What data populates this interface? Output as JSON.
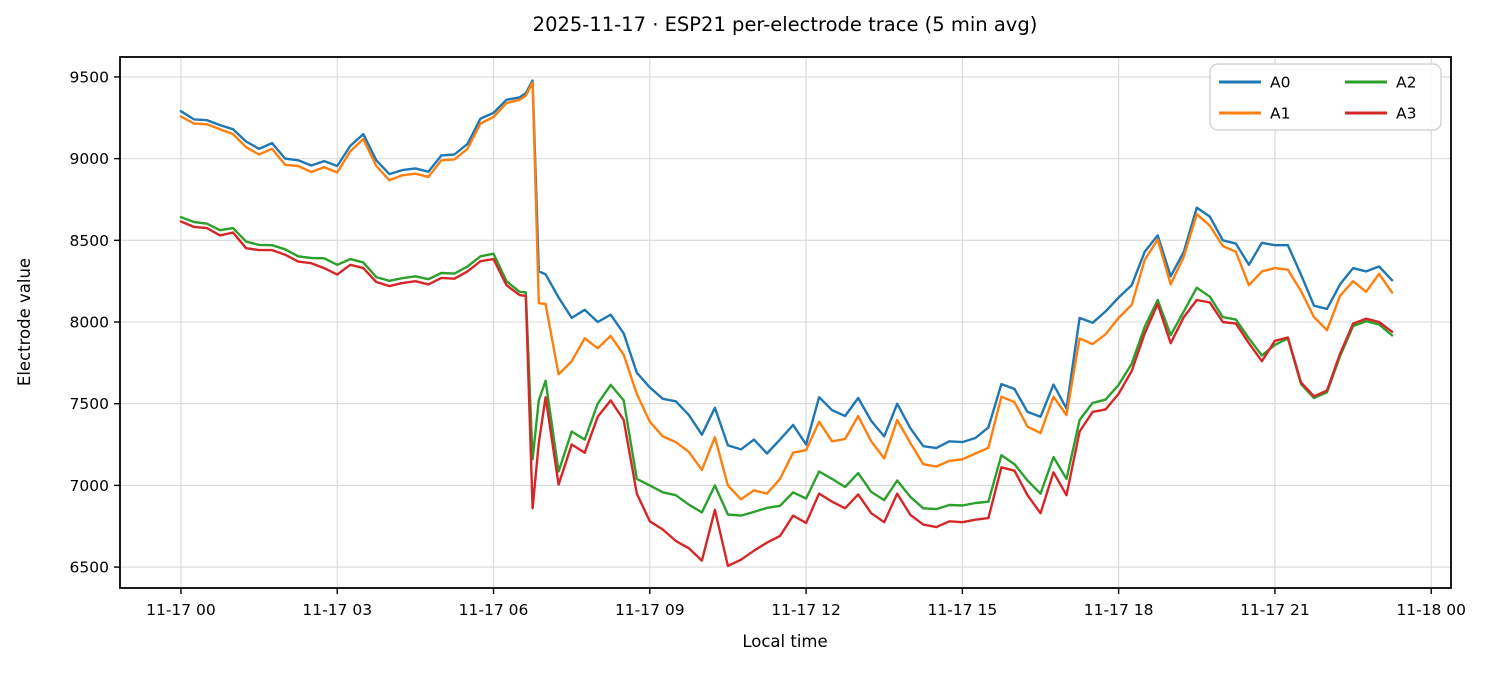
{
  "figure": {
    "title": "2025-11-17 · ESP21 per-electrode trace (5 min avg)",
    "xlabel": "Local time",
    "ylabel": "Electrode value"
  },
  "chart_data": {
    "type": "line",
    "title": "2025-11-17 · ESP21 per-electrode trace (5 min avg)",
    "xlabel": "Local time",
    "ylabel": "Electrode value",
    "x_unit": "hours after 2025-11-17 00:00 local",
    "grid": true,
    "xlim_hours": [
      -1.17,
      24.38
    ],
    "ylim": [
      6372,
      9622
    ],
    "x_tick_hours": [
      0,
      3,
      6,
      9,
      12,
      15,
      18,
      21,
      24
    ],
    "x_tick_labels": [
      "11-17 00",
      "11-17 03",
      "11-17 06",
      "11-17 09",
      "11-17 12",
      "11-17 15",
      "11-17 18",
      "11-17 21",
      "11-18 00"
    ],
    "y_ticks": [
      6500,
      7000,
      7500,
      8000,
      8500,
      9000,
      9500
    ],
    "legend": {
      "position": "upper right",
      "columns": 2,
      "entries": [
        "A0",
        "A1",
        "A2",
        "A3"
      ]
    },
    "x_hours": [
      0,
      0.25,
      0.5,
      0.75,
      1,
      1.25,
      1.5,
      1.75,
      2,
      2.25,
      2.5,
      2.75,
      3,
      3.25,
      3.5,
      3.75,
      4,
      4.25,
      4.5,
      4.75,
      5,
      5.25,
      5.5,
      5.75,
      6,
      6.25,
      6.5,
      6.62,
      6.75,
      6.87,
      7,
      7.25,
      7.5,
      7.75,
      8,
      8.25,
      8.5,
      8.75,
      9,
      9.25,
      9.5,
      9.75,
      10,
      10.25,
      10.5,
      10.75,
      11,
      11.25,
      11.5,
      11.75,
      12,
      12.25,
      12.5,
      12.75,
      13,
      13.25,
      13.5,
      13.75,
      14,
      14.25,
      14.5,
      14.75,
      15,
      15.25,
      15.5,
      15.75,
      16,
      16.25,
      16.5,
      16.75,
      17,
      17.25,
      17.5,
      17.75,
      18,
      18.25,
      18.5,
      18.75,
      19,
      19.25,
      19.5,
      19.75,
      20,
      20.25,
      20.5,
      20.75,
      21,
      21.25,
      21.5,
      21.75,
      22,
      22.25,
      22.5,
      22.75,
      23,
      23.25
    ],
    "series": [
      {
        "name": "A0",
        "color": "#1f77b4",
        "values": [
          9290,
          9240,
          9235,
          9205,
          9180,
          9105,
          9060,
          9095,
          9000,
          8990,
          8958,
          8985,
          8955,
          9078,
          9150,
          8990,
          8905,
          8930,
          8940,
          8920,
          9020,
          9025,
          9090,
          9245,
          9280,
          9360,
          9375,
          9400,
          9478,
          8310,
          8292,
          8150,
          8025,
          8075,
          8000,
          8045,
          7930,
          7690,
          7600,
          7530,
          7515,
          7430,
          7310,
          7475,
          7245,
          7220,
          7280,
          7195,
          7280,
          7370,
          7250,
          7540,
          7460,
          7425,
          7535,
          7395,
          7300,
          7500,
          7350,
          7240,
          7228,
          7270,
          7265,
          7290,
          7355,
          7620,
          7590,
          7450,
          7420,
          7617,
          7470,
          8025,
          7995,
          8065,
          8150,
          8225,
          8430,
          8530,
          8280,
          8430,
          8700,
          8645,
          8500,
          8480,
          8350,
          8485,
          8470,
          8470,
          8290,
          8100,
          8080,
          8230,
          8330,
          8310,
          8340,
          8255
        ]
      },
      {
        "name": "A1",
        "color": "#ff7f0e",
        "values": [
          9258,
          9215,
          9210,
          9180,
          9150,
          9070,
          9025,
          9060,
          8962,
          8955,
          8918,
          8948,
          8915,
          9045,
          9120,
          8955,
          8868,
          8898,
          8908,
          8888,
          8990,
          8995,
          9060,
          9215,
          9255,
          9340,
          9360,
          9385,
          9465,
          8115,
          8110,
          7680,
          7760,
          7900,
          7840,
          7915,
          7800,
          7560,
          7390,
          7300,
          7265,
          7205,
          7095,
          7295,
          7000,
          6915,
          6970,
          6950,
          7040,
          7200,
          7216,
          7390,
          7270,
          7284,
          7425,
          7270,
          7165,
          7400,
          7260,
          7130,
          7115,
          7150,
          7160,
          7195,
          7230,
          7543,
          7510,
          7360,
          7320,
          7543,
          7430,
          7900,
          7865,
          7925,
          8025,
          8105,
          8380,
          8505,
          8230,
          8400,
          8660,
          8590,
          8465,
          8430,
          8225,
          8310,
          8330,
          8320,
          8190,
          8030,
          7950,
          8160,
          8250,
          8185,
          8295,
          8180
        ]
      },
      {
        "name": "A2",
        "color": "#2ca02c",
        "values": [
          8642,
          8612,
          8602,
          8562,
          8575,
          8492,
          8472,
          8470,
          8445,
          8402,
          8392,
          8390,
          8350,
          8385,
          8365,
          8275,
          8252,
          8268,
          8280,
          8262,
          8300,
          8296,
          8340,
          8402,
          8418,
          8250,
          8185,
          8182,
          7160,
          7520,
          7640,
          7085,
          7330,
          7280,
          7500,
          7615,
          7520,
          7040,
          7000,
          6958,
          6940,
          6882,
          6835,
          7000,
          6822,
          6815,
          6838,
          6862,
          6875,
          6957,
          6920,
          7085,
          7040,
          6990,
          7075,
          6960,
          6910,
          7030,
          6930,
          6860,
          6855,
          6880,
          6877,
          6892,
          6900,
          7185,
          7130,
          7030,
          6950,
          7173,
          7040,
          7400,
          7505,
          7525,
          7615,
          7745,
          7970,
          8135,
          7920,
          8065,
          8210,
          8155,
          8030,
          8015,
          7900,
          7795,
          7860,
          7900,
          7620,
          7535,
          7570,
          7790,
          7975,
          8005,
          7985,
          7918
        ]
      },
      {
        "name": "A3",
        "color": "#d62728",
        "values": [
          8615,
          8582,
          8575,
          8530,
          8548,
          8452,
          8440,
          8440,
          8412,
          8370,
          8360,
          8330,
          8290,
          8350,
          8330,
          8245,
          8220,
          8238,
          8250,
          8230,
          8270,
          8265,
          8310,
          8372,
          8385,
          8225,
          8165,
          8160,
          6860,
          7260,
          7540,
          7005,
          7250,
          7200,
          7420,
          7520,
          7400,
          6950,
          6780,
          6730,
          6660,
          6615,
          6540,
          6850,
          6507,
          6545,
          6600,
          6650,
          6690,
          6815,
          6770,
          6950,
          6900,
          6860,
          6945,
          6830,
          6775,
          6950,
          6820,
          6760,
          6745,
          6780,
          6775,
          6790,
          6800,
          7111,
          7090,
          6940,
          6830,
          7080,
          6940,
          7330,
          7450,
          7465,
          7560,
          7700,
          7930,
          8110,
          7870,
          8030,
          8135,
          8120,
          8000,
          7990,
          7870,
          7760,
          7885,
          7905,
          7630,
          7545,
          7580,
          7805,
          7990,
          8020,
          8000,
          7940
        ]
      }
    ]
  }
}
